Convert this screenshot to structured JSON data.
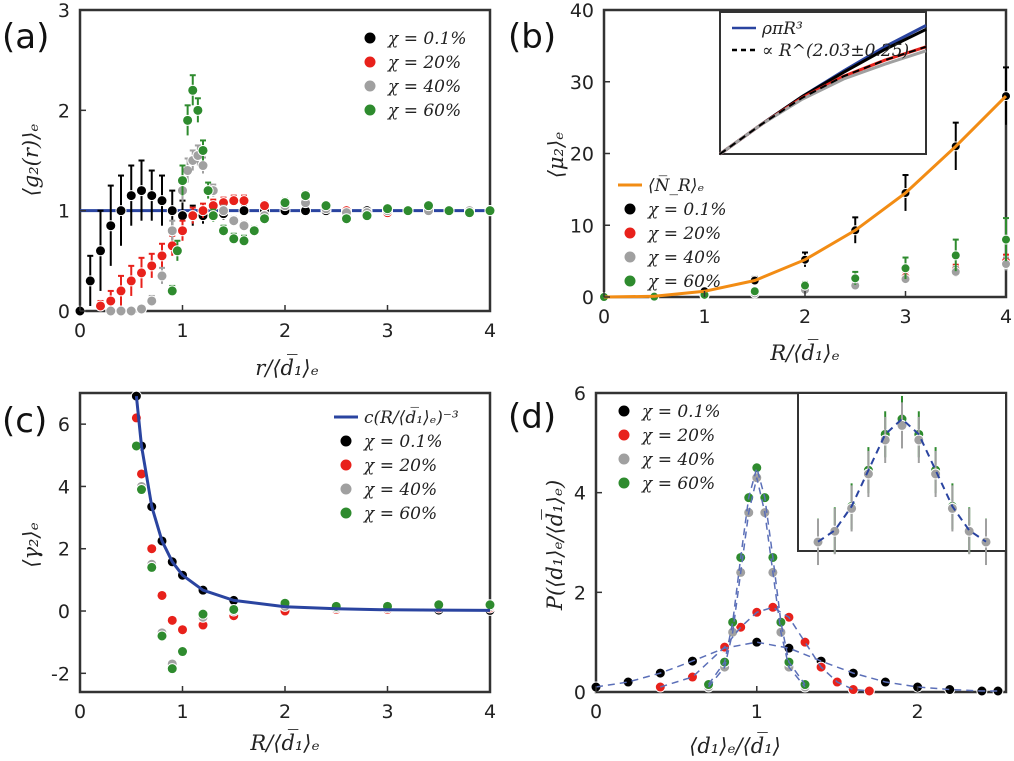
{
  "colors": {
    "black": "#000000",
    "red": "#e8211b",
    "gray": "#a0a0a0",
    "green": "#2e8b2e",
    "blue": "#2a44a0",
    "orange": "#f28c14"
  },
  "chart_data": [
    {
      "id": "a",
      "panel_label": "(a)",
      "type": "scatter",
      "xlabel": "r/⟨d̅₁⟩ₑ",
      "ylabel": "⟨g₂(r)⟩ₑ",
      "xlim": [
        0,
        4
      ],
      "ylim": [
        0,
        3
      ],
      "xticks": [
        "0",
        "1",
        "2",
        "3",
        "4"
      ],
      "yticks": [
        "0",
        "1",
        "2",
        "3"
      ],
      "legend_position": "top-right",
      "reference_line": {
        "name": "g2 = 1",
        "y": 1,
        "color": "#2a44a0"
      },
      "series": [
        {
          "name": "χ = 0.1%",
          "color": "#000000",
          "x": [
            0.0,
            0.1,
            0.2,
            0.3,
            0.4,
            0.5,
            0.6,
            0.7,
            0.8,
            0.9,
            1.0,
            1.1,
            1.2,
            1.4,
            1.6,
            1.8,
            2.0,
            2.2,
            2.4,
            2.6,
            2.8,
            3.0,
            3.2,
            3.4,
            3.6,
            3.8,
            4.0
          ],
          "y": [
            0.0,
            0.3,
            0.6,
            0.85,
            1.0,
            1.15,
            1.2,
            1.15,
            1.1,
            1.0,
            0.95,
            0.95,
            0.95,
            0.97,
            1.0,
            1.0,
            1.0,
            1.0,
            1.0,
            1.0,
            1.0,
            1.0,
            1.0,
            1.0,
            1.0,
            1.0,
            1.0
          ],
          "err": [
            0,
            0.25,
            0.4,
            0.4,
            0.35,
            0.3,
            0.3,
            0.25,
            0.25,
            0.2,
            0.15,
            0.1,
            0.08,
            0.06,
            0.05,
            0.04,
            0.04,
            0.03,
            0.03,
            0.03,
            0.02,
            0.02,
            0.02,
            0.02,
            0.02,
            0.02,
            0.02
          ]
        },
        {
          "name": "χ = 20%",
          "color": "#e8211b",
          "x": [
            0.2,
            0.3,
            0.4,
            0.5,
            0.6,
            0.7,
            0.8,
            0.9,
            1.0,
            1.1,
            1.2,
            1.3,
            1.4,
            1.5,
            1.6,
            1.8,
            2.0,
            2.2,
            2.4,
            2.6,
            2.8,
            3.0,
            3.2,
            3.4,
            3.6,
            3.8,
            4.0
          ],
          "y": [
            0.05,
            0.1,
            0.2,
            0.3,
            0.38,
            0.45,
            0.55,
            0.65,
            0.8,
            0.95,
            1.0,
            1.05,
            1.08,
            1.1,
            1.1,
            1.05,
            1.08,
            1.1,
            1.05,
            1.0,
            0.98,
            0.98,
            1.0,
            1.0,
            1.0,
            1.0,
            1.0
          ],
          "err": [
            0.05,
            0.1,
            0.15,
            0.15,
            0.15,
            0.12,
            0.12,
            0.1,
            0.1,
            0.08,
            0.07,
            0.06,
            0.05,
            0.05,
            0.05,
            0.04,
            0.04,
            0.04,
            0.03,
            0.03,
            0.03,
            0.02,
            0.02,
            0.02,
            0.02,
            0.02,
            0.02
          ]
        },
        {
          "name": "χ = 40%",
          "color": "#a0a0a0",
          "x": [
            0.3,
            0.4,
            0.5,
            0.6,
            0.7,
            0.8,
            0.9,
            1.0,
            1.05,
            1.1,
            1.15,
            1.2,
            1.3,
            1.4,
            1.5,
            1.6,
            1.8,
            2.0,
            2.2,
            2.4,
            2.6,
            2.8,
            3.0,
            3.2,
            3.4,
            3.6,
            3.8,
            4.0
          ],
          "y": [
            0.0,
            0.0,
            0.0,
            0.02,
            0.1,
            0.35,
            0.8,
            1.2,
            1.4,
            1.5,
            1.55,
            1.45,
            1.2,
            1.0,
            0.9,
            0.85,
            0.95,
            1.05,
            1.08,
            1.02,
            0.98,
            0.98,
            1.0,
            1.0,
            1.0,
            1.0,
            1.0,
            1.0
          ],
          "err": [
            0,
            0,
            0,
            0.02,
            0.05,
            0.08,
            0.1,
            0.12,
            0.12,
            0.1,
            0.1,
            0.08,
            0.06,
            0.05,
            0.04,
            0.04,
            0.03,
            0.03,
            0.03,
            0.03,
            0.02,
            0.02,
            0.02,
            0.02,
            0.02,
            0.02,
            0.02,
            0.02
          ]
        },
        {
          "name": "χ = 60%",
          "color": "#2e8b2e",
          "x": [
            0.9,
            0.95,
            1.0,
            1.05,
            1.1,
            1.15,
            1.2,
            1.25,
            1.3,
            1.4,
            1.5,
            1.6,
            1.7,
            1.8,
            2.0,
            2.2,
            2.4,
            2.6,
            2.8,
            3.0,
            3.2,
            3.4,
            3.6,
            3.8,
            4.0
          ],
          "y": [
            0.2,
            0.6,
            1.3,
            1.9,
            2.2,
            2.0,
            1.6,
            1.2,
            0.95,
            0.8,
            0.72,
            0.7,
            0.8,
            0.92,
            1.08,
            1.15,
            1.05,
            0.92,
            0.95,
            1.02,
            1.0,
            1.05,
            1.0,
            0.98,
            1.0
          ],
          "err": [
            0.05,
            0.1,
            0.15,
            0.15,
            0.15,
            0.12,
            0.1,
            0.08,
            0.06,
            0.05,
            0.05,
            0.05,
            0.04,
            0.04,
            0.04,
            0.04,
            0.03,
            0.03,
            0.03,
            0.03,
            0.02,
            0.02,
            0.02,
            0.02,
            0.02
          ]
        }
      ]
    },
    {
      "id": "b",
      "panel_label": "(b)",
      "type": "scatter",
      "xlabel": "R/⟨d̅₁⟩ₑ",
      "ylabel": "⟨μ₂⟩ₑ",
      "xlim": [
        0,
        4
      ],
      "ylim": [
        0,
        40
      ],
      "xticks": [
        "0",
        "1",
        "2",
        "3",
        "4"
      ],
      "yticks": [
        "0",
        "10",
        "20",
        "30",
        "40"
      ],
      "legend_position": "left",
      "line": {
        "name": "⟨N̅_R⟩ₑ",
        "color": "#f28c14",
        "x": [
          0,
          0.5,
          1.0,
          1.5,
          2.0,
          2.5,
          3.0,
          3.5,
          4.0
        ],
        "y": [
          0,
          0.1,
          0.8,
          2.3,
          5.2,
          9.3,
          14.5,
          21,
          28
        ]
      },
      "series": [
        {
          "name": "χ = 0.1%",
          "color": "#000000",
          "x": [
            0,
            0.5,
            1.0,
            1.5,
            2.0,
            2.5,
            3.0,
            3.5,
            4.0
          ],
          "y": [
            0,
            0.1,
            0.8,
            2.3,
            5.2,
            9.3,
            14.5,
            21,
            28
          ],
          "err": [
            0,
            0.05,
            0.2,
            0.5,
            1,
            1.8,
            2.5,
            3.3,
            4
          ]
        },
        {
          "name": "χ = 20%",
          "color": "#e8211b",
          "x": [
            0,
            0.5,
            1.0,
            1.5,
            2.0,
            2.5,
            3.0,
            3.5,
            4.0
          ],
          "y": [
            0,
            0.05,
            0.3,
            0.7,
            1.2,
            1.8,
            2.8,
            3.8,
            5
          ],
          "err": [
            0,
            0.02,
            0.05,
            0.1,
            0.2,
            0.3,
            0.5,
            0.7,
            0.9
          ]
        },
        {
          "name": "χ = 40%",
          "color": "#a0a0a0",
          "x": [
            0,
            0.5,
            1.0,
            1.5,
            2.0,
            2.5,
            3.0,
            3.5,
            4.0
          ],
          "y": [
            0,
            0.03,
            0.2,
            0.5,
            1.0,
            1.6,
            2.5,
            3.5,
            4.6
          ],
          "err": [
            0,
            0.02,
            0.05,
            0.1,
            0.2,
            0.3,
            0.5,
            0.7,
            0.9
          ]
        },
        {
          "name": "χ = 60%",
          "color": "#2e8b2e",
          "x": [
            0,
            0.5,
            1.0,
            1.5,
            2.0,
            2.5,
            3.0,
            3.5,
            4.0
          ],
          "y": [
            0,
            0.05,
            0.3,
            0.8,
            1.6,
            2.6,
            4.0,
            5.8,
            8
          ],
          "err": [
            0,
            0.05,
            0.1,
            0.3,
            0.5,
            0.9,
            1.5,
            2.2,
            3
          ]
        }
      ],
      "inset": {
        "legend": [
          "ρπR³",
          "∝ R^(2.03±0.25)"
        ],
        "curves": [
          {
            "name": "ρπR³",
            "color": "#2a44a0",
            "dashed": false,
            "x": [
              0,
              0.2,
              0.4,
              0.6,
              0.8,
              1.0
            ],
            "y": [
              0,
              0.22,
              0.43,
              0.62,
              0.8,
              0.96
            ]
          },
          {
            "name": "black data",
            "color": "#000000",
            "dashed": false,
            "x": [
              0,
              0.2,
              0.4,
              0.6,
              0.8,
              1.0
            ],
            "y": [
              0,
              0.22,
              0.43,
              0.61,
              0.78,
              0.93
            ]
          },
          {
            "name": "red data",
            "color": "#e8211b",
            "dashed": false,
            "x": [
              0,
              0.2,
              0.4,
              0.6,
              0.8,
              1.0
            ],
            "y": [
              0,
              0.22,
              0.42,
              0.58,
              0.7,
              0.8
            ]
          },
          {
            "name": "gray data",
            "color": "#a0a0a0",
            "dashed": false,
            "x": [
              0,
              0.2,
              0.4,
              0.6,
              0.8,
              1.0
            ],
            "y": [
              0,
              0.22,
              0.41,
              0.56,
              0.67,
              0.77
            ]
          },
          {
            "name": "∝ R^(2.03±0.25)",
            "color": "#000000",
            "dashed": true,
            "x": [
              0,
              0.2,
              0.4,
              0.6,
              0.8,
              1.0
            ],
            "y": [
              0,
              0.22,
              0.42,
              0.58,
              0.7,
              0.8
            ]
          }
        ]
      }
    },
    {
      "id": "c",
      "panel_label": "(c)",
      "type": "scatter",
      "xlabel": "R/⟨d̅₁⟩ₑ",
      "ylabel": "⟨γ₂⟩ₑ",
      "xlim": [
        0,
        4
      ],
      "ylim": [
        -2.6,
        7
      ],
      "xticks": [
        "0",
        "1",
        "2",
        "3",
        "4"
      ],
      "yticks": [
        "-2",
        "0",
        "2",
        "4",
        "6"
      ],
      "legend_position": "top-right",
      "line": {
        "name": "c(R/⟨d̅₁⟩ₑ)⁻³",
        "color": "#2a44a0",
        "x": [
          0.55,
          0.6,
          0.7,
          0.8,
          0.9,
          1.0,
          1.2,
          1.5,
          2.0,
          2.5,
          3.0,
          3.5,
          4.0
        ],
        "y": [
          6.9,
          5.3,
          3.35,
          2.25,
          1.58,
          1.15,
          0.67,
          0.34,
          0.14,
          0.07,
          0.04,
          0.03,
          0.02
        ]
      },
      "series": [
        {
          "name": "χ = 0.1%",
          "color": "#000000",
          "x": [
            0.55,
            0.6,
            0.7,
            0.8,
            0.9,
            1.0,
            1.2,
            1.5,
            2.0,
            2.5,
            3.0,
            3.5,
            4.0
          ],
          "y": [
            6.9,
            5.3,
            3.35,
            2.25,
            1.58,
            1.15,
            0.67,
            0.34,
            0.14,
            0.07,
            0.04,
            0.03,
            0.02
          ]
        },
        {
          "name": "χ = 20%",
          "color": "#e8211b",
          "x": [
            0.55,
            0.6,
            0.7,
            0.8,
            0.9,
            1.0,
            1.2,
            1.5,
            2.0,
            2.5,
            3.0,
            3.5,
            4.0
          ],
          "y": [
            6.2,
            4.4,
            2.0,
            0.5,
            -0.3,
            -0.6,
            -0.45,
            -0.15,
            0.0,
            0.05,
            0.05,
            0.1,
            0.1
          ]
        },
        {
          "name": "χ = 40%",
          "color": "#a0a0a0",
          "x": [
            0.55,
            0.6,
            0.7,
            0.8,
            0.9,
            1.0,
            1.2,
            1.5,
            2.0,
            2.5,
            3.0,
            3.5,
            4.0
          ],
          "y": [
            5.3,
            4.0,
            1.5,
            -0.7,
            -1.7,
            -1.3,
            -0.2,
            0.0,
            0.15,
            0.1,
            0.1,
            0.15,
            0.15
          ]
        },
        {
          "name": "χ = 60%",
          "color": "#2e8b2e",
          "x": [
            0.55,
            0.6,
            0.7,
            0.8,
            0.9,
            1.0,
            1.2,
            1.5,
            2.0,
            2.5,
            3.0,
            3.5,
            4.0
          ],
          "y": [
            5.3,
            3.9,
            1.4,
            -0.8,
            -1.85,
            -1.3,
            -0.1,
            0.05,
            0.25,
            0.15,
            0.15,
            0.2,
            0.2
          ]
        }
      ]
    },
    {
      "id": "d",
      "panel_label": "(d)",
      "type": "scatter",
      "xlabel": "⟨d₁⟩ₑ/⟨d̅₁⟩",
      "ylabel": "P(⟨d₁⟩ₑ/⟨d̅₁⟩ₑ)",
      "xlim": [
        0,
        2.55
      ],
      "ylim": [
        0,
        6
      ],
      "xticks": [
        "0",
        "1",
        "2"
      ],
      "yticks": [
        "0",
        "2",
        "4",
        "6"
      ],
      "legend_position": "top-left",
      "series": [
        {
          "name": "χ = 0.1%",
          "color": "#000000",
          "x": [
            0.0,
            0.2,
            0.4,
            0.6,
            0.8,
            1.0,
            1.2,
            1.4,
            1.6,
            1.8,
            2.0,
            2.2,
            2.4,
            2.5
          ],
          "y": [
            0.1,
            0.2,
            0.38,
            0.62,
            0.88,
            1.0,
            0.88,
            0.62,
            0.38,
            0.2,
            0.1,
            0.05,
            0.02,
            0.02
          ]
        },
        {
          "name": "χ = 20%",
          "color": "#e8211b",
          "x": [
            0.4,
            0.6,
            0.8,
            0.9,
            1.0,
            1.1,
            1.2,
            1.3,
            1.4,
            1.5,
            1.6,
            1.7
          ],
          "y": [
            0.1,
            0.3,
            0.9,
            1.3,
            1.6,
            1.7,
            1.5,
            1.0,
            0.5,
            0.2,
            0.05,
            0.02
          ]
        },
        {
          "name": "χ = 40%",
          "color": "#a0a0a0",
          "x": [
            0.7,
            0.8,
            0.85,
            0.9,
            0.95,
            1.0,
            1.05,
            1.1,
            1.15,
            1.2,
            1.3
          ],
          "y": [
            0.1,
            0.5,
            1.2,
            2.4,
            3.6,
            4.3,
            3.6,
            2.4,
            1.2,
            0.5,
            0.1
          ]
        },
        {
          "name": "χ = 60%",
          "color": "#2e8b2e",
          "x": [
            0.7,
            0.8,
            0.85,
            0.9,
            0.95,
            1.0,
            1.05,
            1.1,
            1.15,
            1.2,
            1.3
          ],
          "y": [
            0.15,
            0.6,
            1.4,
            2.7,
            3.9,
            4.5,
            3.9,
            2.7,
            1.4,
            0.6,
            0.15
          ]
        }
      ],
      "inset": {
        "description_free": true
      }
    }
  ]
}
